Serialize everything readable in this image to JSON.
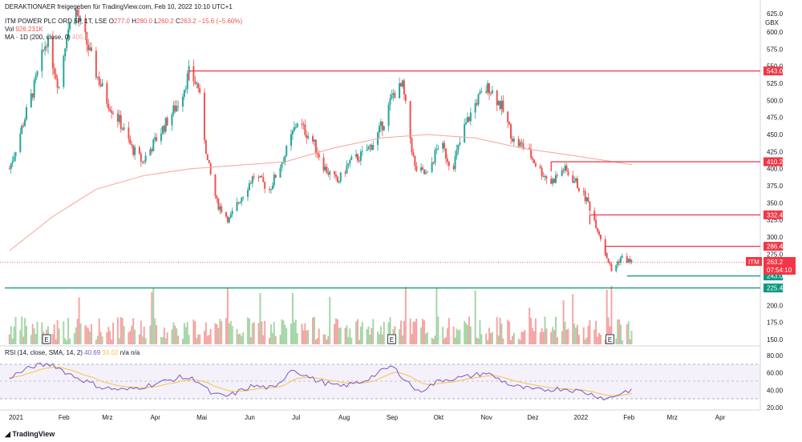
{
  "header": {
    "source_line": "DERAKTIONAER freigegeben für TradingView.com, Feb 10, 2022 10:10 UTC+1",
    "symbol_line": "ITM POWER PLC ORD 5P, 1T, LSE",
    "ohlc": {
      "o_label": "O",
      "o": "277.0",
      "h_label": "H",
      "h": "280.0",
      "l_label": "L",
      "l": "260.2",
      "c_label": "C",
      "c": "263.2",
      "chg": "−15.6 (−5.60%)"
    },
    "vol_label": "Vol",
    "vol_value": "926.231K",
    "ma_label": "MA · 1D (200, close, 0)",
    "ma_value": "405.9"
  },
  "price_axis": {
    "currency": "GBX",
    "ticks": [
      "600.0",
      "575.0",
      "550.0",
      "525.0",
      "500.0",
      "475.0",
      "450.0",
      "425.0",
      "400.0",
      "375.0",
      "350.0",
      "325.0",
      "300.0",
      "275.0",
      "250.0",
      "225.0",
      "200.0",
      "175.0",
      "150.0"
    ],
    "top_tick": "625.0"
  },
  "levels": [
    {
      "value": 543.0,
      "label": "543.0",
      "color": "#f23645"
    },
    {
      "value": 410.2,
      "label": "410.2",
      "color": "#f23645"
    },
    {
      "value": 332.4,
      "label": "332.4",
      "color": "#f23645"
    },
    {
      "value": 286.4,
      "label": "286.4",
      "color": "#f23645"
    },
    {
      "value": 243.0,
      "label": "243.0",
      "color": "#089981"
    },
    {
      "value": 225.4,
      "label": "225.4",
      "color": "#089981"
    }
  ],
  "last_price": {
    "ticker": "ITM",
    "value": "263.2",
    "countdown": "07:54:10",
    "color": "#f23645"
  },
  "rsi": {
    "label": "RSI (14, close, SMA, 14, 2)",
    "value": "40.69",
    "sma_value": "33.02",
    "na1": "n/a",
    "na2": "n/a",
    "ticks": [
      "80.00",
      "60.00",
      "40.00",
      "20.00"
    ]
  },
  "time_axis": [
    "2021",
    "Feb",
    "Mrz",
    "Apr",
    "Mai",
    "Jun",
    "Jul",
    "Aug",
    "Sep",
    "Okt",
    "Nov",
    "Dez",
    "2022",
    "Feb",
    "Mrz",
    "Apr"
  ],
  "earnings_marker": "E",
  "footer": {
    "brand": "TradingView"
  },
  "colors": {
    "up": "#26a69a",
    "down": "#ef5350",
    "ma": "#f7a399",
    "rsi": "#7e57c2",
    "rsi_sma": "#f6c445"
  },
  "chart_data": {
    "type": "candlestick",
    "x_range": [
      "2021-01-01",
      "2022-04-30"
    ],
    "y_range": [
      145,
      628
    ],
    "close_path": [
      [
        "2021-01-04",
        400
      ],
      [
        "2021-01-12",
        460
      ],
      [
        "2021-01-20",
        520
      ],
      [
        "2021-01-28",
        590
      ],
      [
        "2021-02-05",
        520
      ],
      [
        "2021-02-10",
        600
      ],
      [
        "2021-02-16",
        630
      ],
      [
        "2021-02-22",
        590
      ],
      [
        "2021-03-01",
        540
      ],
      [
        "2021-03-08",
        500
      ],
      [
        "2021-03-16",
        470
      ],
      [
        "2021-03-24",
        430
      ],
      [
        "2021-03-31",
        410
      ],
      [
        "2021-04-08",
        440
      ],
      [
        "2021-04-16",
        470
      ],
      [
        "2021-04-24",
        500
      ],
      [
        "2021-04-30",
        540
      ],
      [
        "2021-05-06",
        520
      ],
      [
        "2021-05-12",
        410
      ],
      [
        "2021-05-18",
        350
      ],
      [
        "2021-05-26",
        325
      ],
      [
        "2021-06-03",
        360
      ],
      [
        "2021-06-11",
        390
      ],
      [
        "2021-06-21",
        370
      ],
      [
        "2021-07-01",
        420
      ],
      [
        "2021-07-09",
        470
      ],
      [
        "2021-07-19",
        440
      ],
      [
        "2021-07-27",
        400
      ],
      [
        "2021-08-04",
        380
      ],
      [
        "2021-08-12",
        410
      ],
      [
        "2021-08-20",
        420
      ],
      [
        "2021-08-28",
        440
      ],
      [
        "2021-09-03",
        470
      ],
      [
        "2021-09-09",
        510
      ],
      [
        "2021-09-15",
        520
      ],
      [
        "2021-09-23",
        400
      ],
      [
        "2021-10-01",
        390
      ],
      [
        "2021-10-09",
        440
      ],
      [
        "2021-10-17",
        400
      ],
      [
        "2021-10-25",
        460
      ],
      [
        "2021-11-02",
        500
      ],
      [
        "2021-11-10",
        520
      ],
      [
        "2021-11-18",
        490
      ],
      [
        "2021-11-26",
        440
      ],
      [
        "2021-12-04",
        430
      ],
      [
        "2021-12-12",
        400
      ],
      [
        "2021-12-20",
        380
      ],
      [
        "2021-12-28",
        400
      ],
      [
        "2022-01-05",
        380
      ],
      [
        "2022-01-13",
        350
      ],
      [
        "2022-01-21",
        300
      ],
      [
        "2022-01-28",
        250
      ],
      [
        "2022-02-03",
        270
      ],
      [
        "2022-02-10",
        263.2
      ]
    ],
    "ma200_path": [
      [
        "2021-01-04",
        280
      ],
      [
        "2021-02-01",
        330
      ],
      [
        "2021-03-01",
        370
      ],
      [
        "2021-04-01",
        390
      ],
      [
        "2021-05-01",
        400
      ],
      [
        "2021-06-01",
        405
      ],
      [
        "2021-07-01",
        410
      ],
      [
        "2021-08-01",
        430
      ],
      [
        "2021-09-01",
        445
      ],
      [
        "2021-10-01",
        450
      ],
      [
        "2021-11-01",
        445
      ],
      [
        "2021-12-01",
        430
      ],
      [
        "2022-01-01",
        420
      ],
      [
        "2022-02-10",
        405.9
      ]
    ],
    "rsi_path": [
      [
        "2021-01-04",
        55
      ],
      [
        "2021-01-20",
        68
      ],
      [
        "2021-02-01",
        70
      ],
      [
        "2021-02-10",
        60
      ],
      [
        "2021-02-20",
        52
      ],
      [
        "2021-03-05",
        43
      ],
      [
        "2021-03-20",
        40
      ],
      [
        "2021-04-05",
        46
      ],
      [
        "2021-04-25",
        55
      ],
      [
        "2021-05-05",
        52
      ],
      [
        "2021-05-15",
        35
      ],
      [
        "2021-05-25",
        33
      ],
      [
        "2021-06-10",
        45
      ],
      [
        "2021-06-25",
        42
      ],
      [
        "2021-07-05",
        65
      ],
      [
        "2021-07-20",
        52
      ],
      [
        "2021-08-05",
        44
      ],
      [
        "2021-08-20",
        50
      ],
      [
        "2021-09-08",
        68
      ],
      [
        "2021-09-25",
        38
      ],
      [
        "2021-10-10",
        52
      ],
      [
        "2021-10-25",
        55
      ],
      [
        "2021-11-08",
        60
      ],
      [
        "2021-11-25",
        45
      ],
      [
        "2021-12-10",
        40
      ],
      [
        "2021-12-28",
        42
      ],
      [
        "2022-01-10",
        38
      ],
      [
        "2022-01-25",
        30
      ],
      [
        "2022-02-05",
        38
      ],
      [
        "2022-02-10",
        40.69
      ]
    ]
  }
}
